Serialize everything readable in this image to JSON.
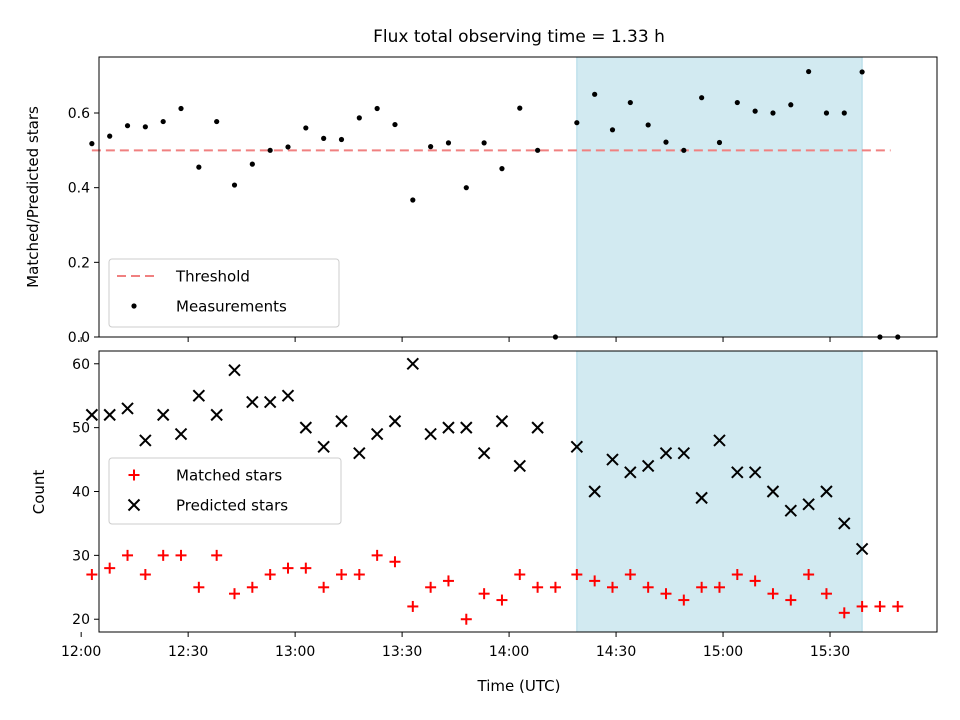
{
  "chart_data": [
    {
      "type": "scatter",
      "title": "Flux total observing time = 1.33 h",
      "ylabel": "Matched/Predicted stars",
      "xlabel": "",
      "ylim": [
        0,
        0.75
      ],
      "yticks": [
        "0.0",
        "0.2",
        "0.4",
        "0.6"
      ],
      "highlight_span": {
        "x_start": "14:19",
        "x_end": "15:39",
        "color": "#add8e6"
      },
      "threshold": {
        "name": "Threshold",
        "value": 0.5,
        "x_start": "12:03",
        "x_end": "15:47",
        "color": "#f08080"
      },
      "legend": {
        "placement": "lower left",
        "entries": [
          "Threshold",
          "Measurements"
        ]
      },
      "series": [
        {
          "name": "Measurements",
          "color": "#000000",
          "x": [
            "12:03",
            "12:08",
            "12:13",
            "12:18",
            "12:23",
            "12:28",
            "12:33",
            "12:38",
            "12:43",
            "12:48",
            "12:53",
            "12:58",
            "13:03",
            "13:08",
            "13:13",
            "13:18",
            "13:23",
            "13:28",
            "13:33",
            "13:38",
            "13:43",
            "13:48",
            "13:53",
            "13:58",
            "14:03",
            "14:08",
            "14:13",
            "14:19",
            "14:24",
            "14:29",
            "14:34",
            "14:39",
            "14:44",
            "14:49",
            "14:54",
            "14:59",
            "15:04",
            "15:09",
            "15:14",
            "15:19",
            "15:24",
            "15:29",
            "15:34",
            "15:39",
            "15:44",
            "15:49"
          ],
          "y": [
            0.518,
            0.538,
            0.566,
            0.563,
            0.577,
            0.612,
            0.455,
            0.577,
            0.407,
            0.463,
            0.5,
            0.509,
            0.56,
            0.532,
            0.529,
            0.587,
            0.612,
            0.569,
            0.367,
            0.51,
            0.52,
            0.4,
            0.52,
            0.451,
            0.613,
            0.5,
            0.0,
            0.574,
            0.65,
            0.555,
            0.628,
            0.568,
            0.522,
            0.5,
            0.641,
            0.521,
            0.628,
            0.605,
            0.6,
            0.622,
            0.711,
            0.6,
            0.6,
            0.71,
            0.0,
            0.0
          ]
        }
      ]
    },
    {
      "type": "scatter",
      "xlabel": "Time (UTC)",
      "ylabel": "Count",
      "ylim": [
        18,
        62
      ],
      "yticks": [
        "20",
        "30",
        "40",
        "50",
        "60"
      ],
      "xticks": [
        "12:00",
        "12:30",
        "13:00",
        "13:30",
        "14:00",
        "14:30",
        "15:00",
        "15:30"
      ],
      "highlight_span": {
        "x_start": "14:19",
        "x_end": "15:39",
        "color": "#add8e6"
      },
      "legend": {
        "placement": "center left",
        "entries": [
          "Matched stars",
          "Predicted stars"
        ]
      },
      "series": [
        {
          "name": "Matched stars",
          "marker": "+",
          "color": "#ff0000",
          "x": [
            "12:03",
            "12:08",
            "12:13",
            "12:18",
            "12:23",
            "12:28",
            "12:33",
            "12:38",
            "12:43",
            "12:48",
            "12:53",
            "12:58",
            "13:03",
            "13:08",
            "13:13",
            "13:18",
            "13:23",
            "13:28",
            "13:33",
            "13:38",
            "13:43",
            "13:48",
            "13:53",
            "13:58",
            "14:03",
            "14:08",
            "14:13",
            "14:19",
            "14:24",
            "14:29",
            "14:34",
            "14:39",
            "14:44",
            "14:49",
            "14:54",
            "14:59",
            "15:04",
            "15:09",
            "15:14",
            "15:19",
            "15:24",
            "15:29",
            "15:34",
            "15:39",
            "15:44",
            "15:49"
          ],
          "y": [
            27,
            28,
            30,
            27,
            30,
            30,
            25,
            30,
            24,
            25,
            27,
            28,
            28,
            25,
            27,
            27,
            30,
            29,
            22,
            25,
            26,
            20,
            24,
            23,
            27,
            25,
            25,
            27,
            26,
            25,
            27,
            25,
            24,
            23,
            25,
            25,
            27,
            26,
            24,
            23,
            27,
            24,
            21,
            22,
            22,
            22
          ]
        },
        {
          "name": "Predicted stars",
          "marker": "x",
          "color": "#000000",
          "x": [
            "12:03",
            "12:08",
            "12:13",
            "12:18",
            "12:23",
            "12:28",
            "12:33",
            "12:38",
            "12:43",
            "12:48",
            "12:53",
            "12:58",
            "13:03",
            "13:08",
            "13:13",
            "13:18",
            "13:23",
            "13:28",
            "13:33",
            "13:38",
            "13:43",
            "13:48",
            "13:53",
            "13:58",
            "14:03",
            "14:08",
            "14:19",
            "14:24",
            "14:29",
            "14:34",
            "14:39",
            "14:44",
            "14:49",
            "14:54",
            "14:59",
            "15:04",
            "15:09",
            "15:14",
            "15:19",
            "15:24",
            "15:29",
            "15:34",
            "15:39"
          ],
          "y": [
            52,
            52,
            53,
            48,
            52,
            49,
            55,
            52,
            59,
            54,
            54,
            55,
            50,
            47,
            51,
            46,
            49,
            51,
            60,
            49,
            50,
            50,
            46,
            51,
            44,
            50,
            47,
            40,
            45,
            43,
            44,
            46,
            46,
            39,
            48,
            43,
            43,
            40,
            37,
            38,
            40,
            35,
            31
          ]
        }
      ]
    }
  ]
}
